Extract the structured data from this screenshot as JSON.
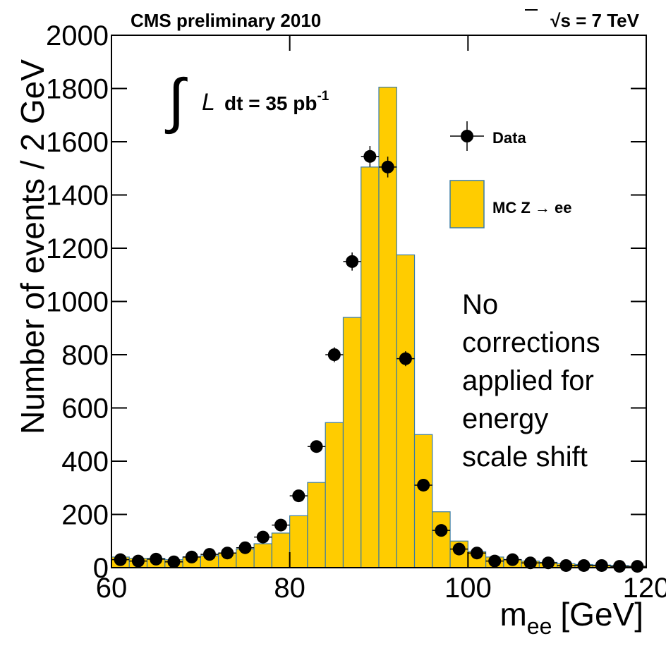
{
  "chart_data": {
    "type": "histogram",
    "title": "CMS preliminary 2010",
    "energy": "√s = 7 TeV",
    "luminosity": {
      "integral": "∫",
      "symbol": "L",
      "text": "dt = 35 pb",
      "exponent": "-1"
    },
    "xlabel": {
      "text": "m",
      "subscript": "ee",
      "unit": "[GeV]"
    },
    "ylabel": "Number of events / 2 GeV",
    "note": [
      "No",
      "corrections",
      "applied for",
      "energy",
      "scale shift"
    ],
    "note_color": "#ff3300",
    "bins": [
      60,
      62,
      64,
      66,
      68,
      70,
      72,
      74,
      76,
      78,
      80,
      82,
      84,
      86,
      88,
      90,
      92,
      94,
      96,
      98,
      100,
      102,
      104,
      106,
      108,
      110,
      112,
      114,
      116,
      118,
      120
    ],
    "series": [
      {
        "name": "Data",
        "type": "errorbar",
        "color": "#000000",
        "x": [
          61,
          63,
          65,
          67,
          69,
          71,
          73,
          75,
          77,
          79,
          81,
          83,
          85,
          87,
          89,
          91,
          93,
          95,
          97,
          99,
          101,
          103,
          105,
          107,
          109,
          111,
          113,
          115,
          117,
          119
        ],
        "values": [
          30,
          25,
          32,
          22,
          40,
          50,
          55,
          75,
          115,
          160,
          270,
          455,
          800,
          1150,
          1545,
          1505,
          785,
          310,
          140,
          70,
          55,
          25,
          30,
          18,
          18,
          8,
          8,
          8,
          5,
          5
        ],
        "errors": [
          5,
          5,
          6,
          5,
          6,
          7,
          7,
          9,
          11,
          13,
          16,
          21,
          28,
          34,
          39,
          39,
          28,
          18,
          12,
          8,
          7,
          5,
          5,
          4,
          4,
          3,
          3,
          3,
          2,
          2
        ]
      },
      {
        "name": "MC Z → ee",
        "type": "histogram",
        "color": "#ffcc00",
        "edgecolor": "#3a7ca5",
        "values": [
          40,
          35,
          35,
          30,
          40,
          45,
          55,
          70,
          90,
          130,
          195,
          320,
          545,
          940,
          1505,
          1805,
          1175,
          500,
          210,
          100,
          60,
          40,
          30,
          25,
          20,
          15,
          12,
          10,
          8,
          5
        ]
      }
    ],
    "xlim": [
      60,
      120
    ],
    "ylim": [
      0,
      2000
    ],
    "xticks": [
      60,
      80,
      100,
      120
    ],
    "yticks": [
      0,
      200,
      400,
      600,
      800,
      1000,
      1200,
      1400,
      1600,
      1800,
      2000
    ]
  }
}
